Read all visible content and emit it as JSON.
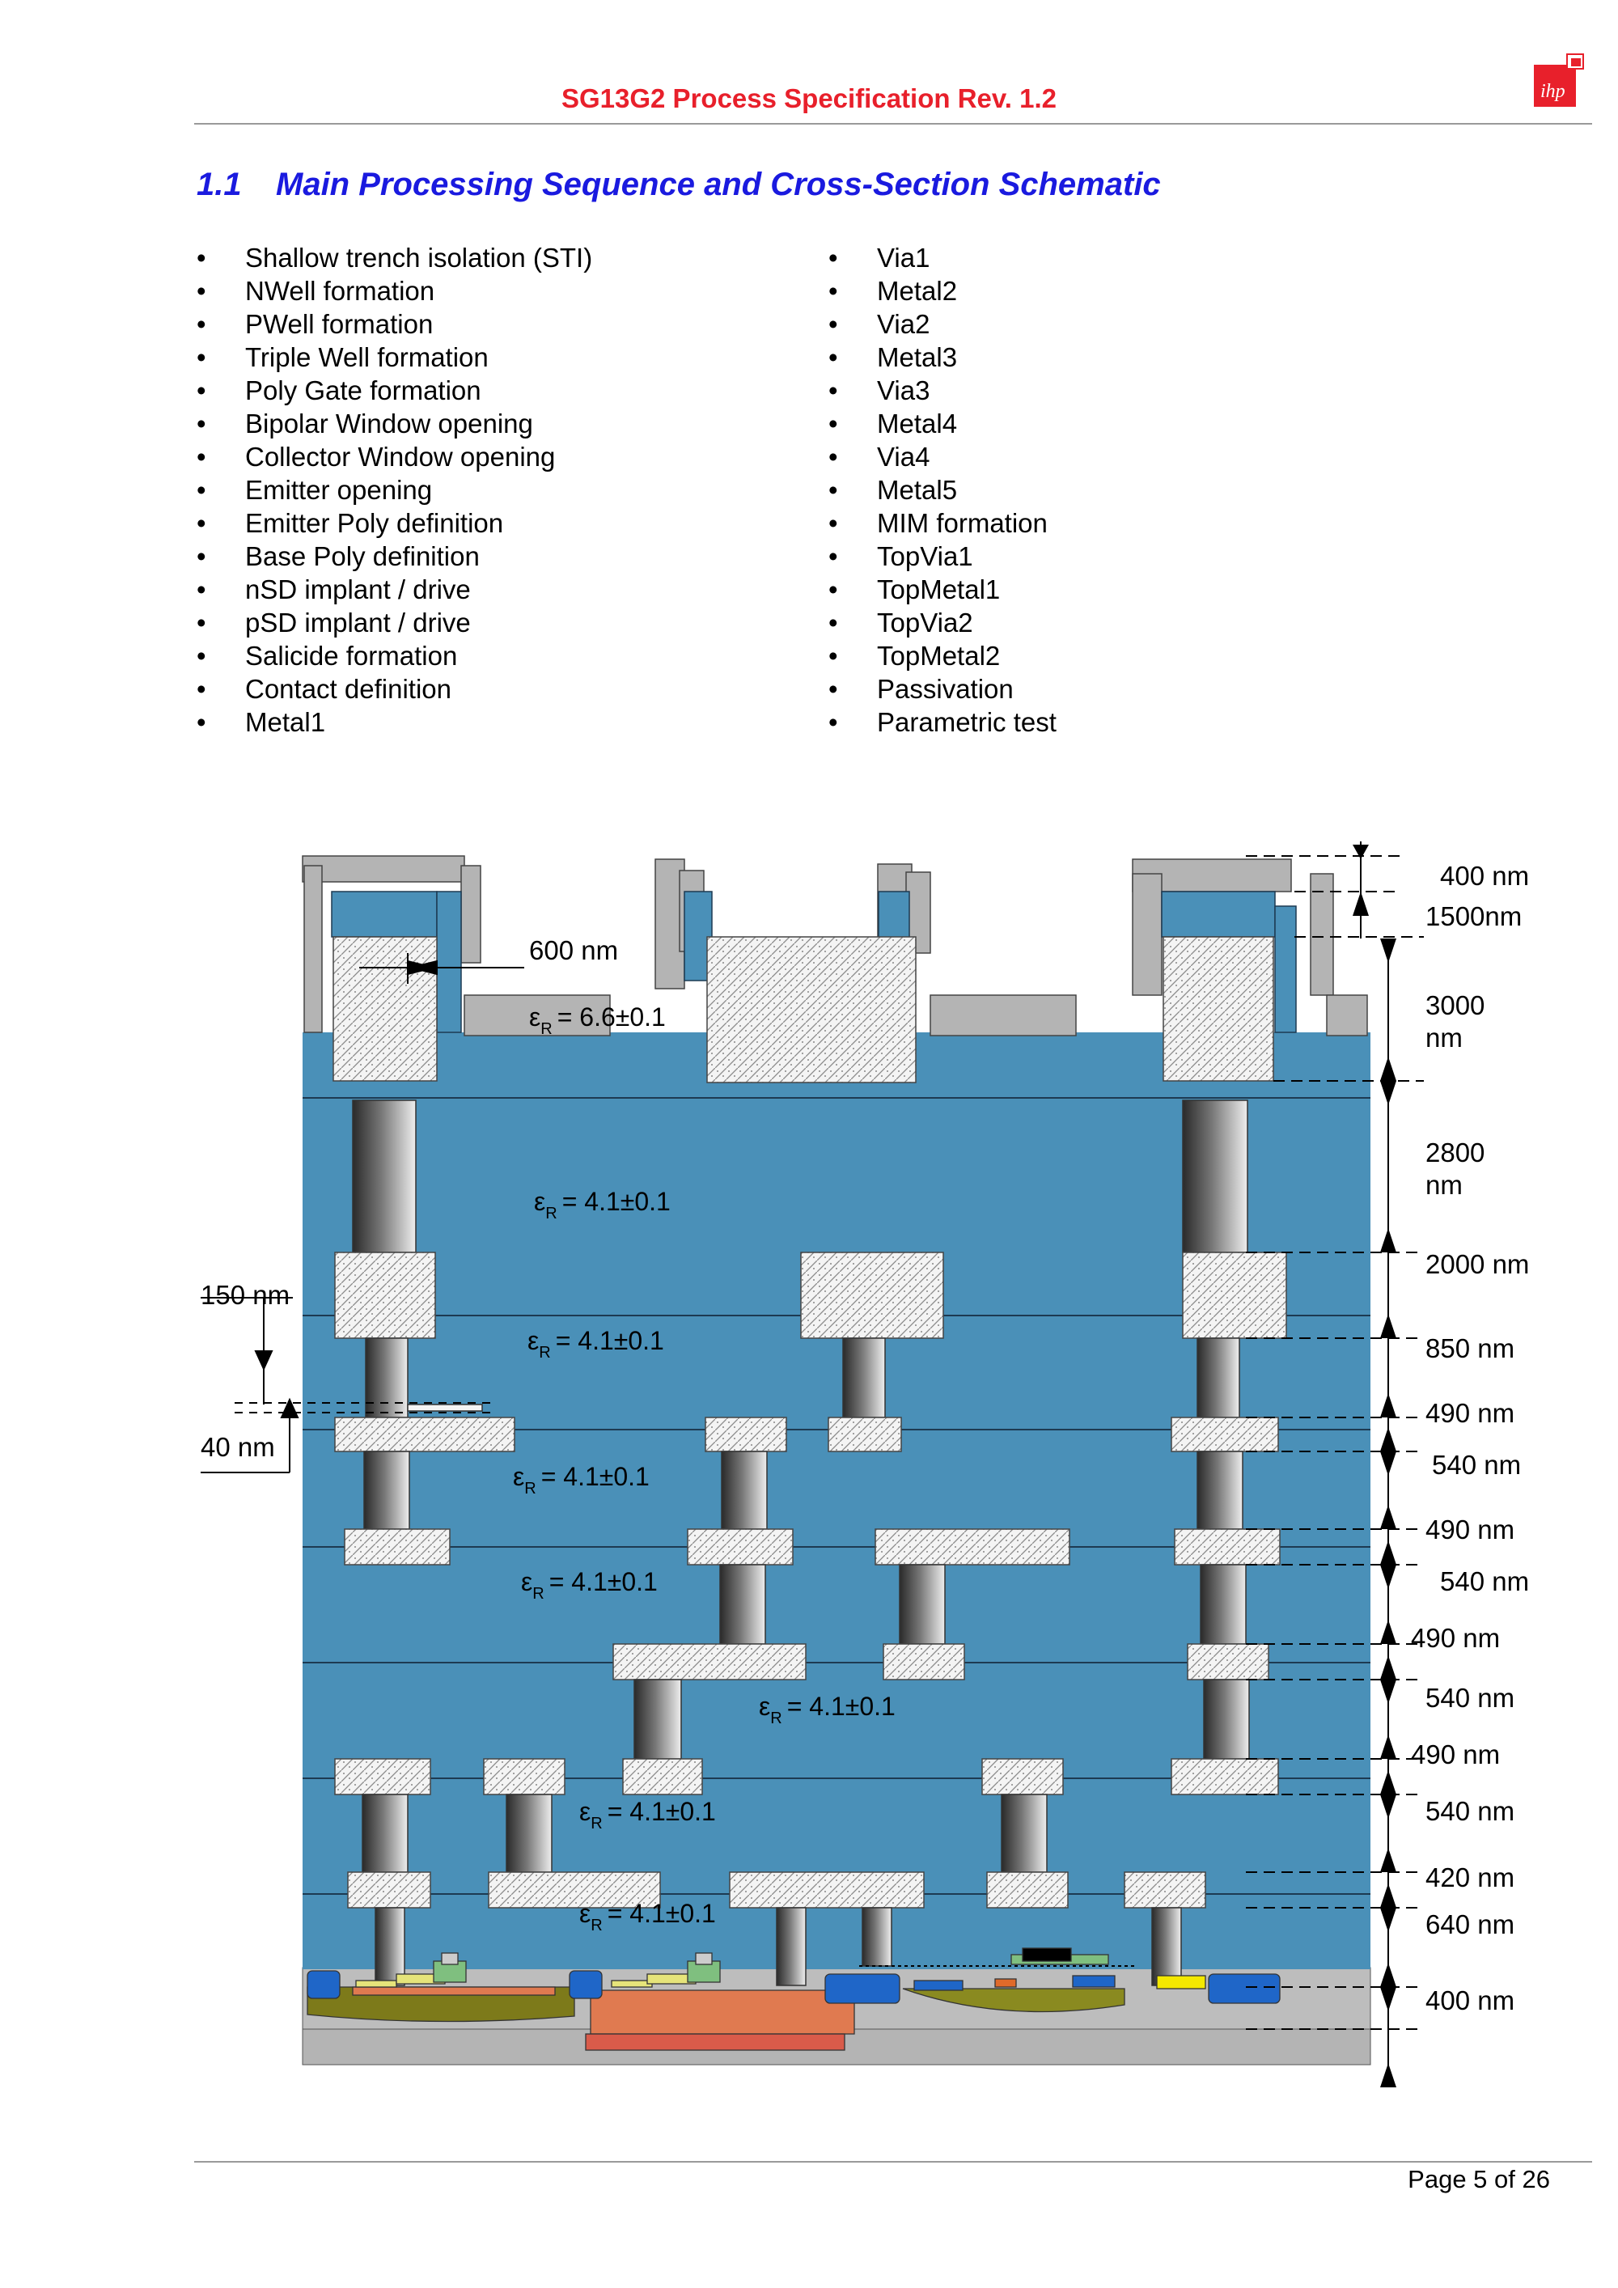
{
  "header": {
    "title": "SG13G2 Process Specification Rev. 1.2",
    "logo_text": "ihp"
  },
  "section": {
    "number": "1.1",
    "title": "Main Processing Sequence and Cross-Section Schematic"
  },
  "steps_left": [
    "Shallow trench isolation (STI)",
    "NWell formation",
    "PWell formation",
    "Triple Well formation",
    "Poly Gate formation",
    "Bipolar Window opening",
    "Collector Window opening",
    "Emitter opening",
    "Emitter Poly definition",
    "Base Poly definition",
    "nSD implant / drive",
    "pSD implant / drive",
    "Salicide formation",
    "Contact definition",
    "Metal1"
  ],
  "steps_right": [
    "Via1",
    "Metal2",
    "Via2",
    "Metal3",
    "Via3",
    "Metal4",
    "Via4",
    "Metal5",
    "MIM formation",
    "TopVia1",
    "TopMetal1",
    "TopVia2",
    "TopMetal2",
    "Passivation",
    "Parametric test"
  ],
  "cross_section": {
    "colors": {
      "dielectric": "#4a90b8",
      "passivation": "#b4b4b4",
      "metal_fill": "#f2f2f2",
      "substrate": "#b4b4b4"
    },
    "dimensions": {
      "passivation_top": "400 nm",
      "passivation": "1500nm",
      "topmetal2_line1": "3000",
      "topmetal2_line2": "nm",
      "topvia2_line1": "2800",
      "topvia2_line2": "nm",
      "topmetal1": "2000 nm",
      "topvia1": "850 nm",
      "metal5": "490 nm",
      "via4": "540 nm",
      "metal4": "490 nm",
      "via3": "540 nm",
      "metal3": "490 nm",
      "via2": "540 nm",
      "metal2": "490 nm",
      "via1": "540 nm",
      "metal1": "420 nm",
      "contact": "640 nm",
      "device": "400 nm",
      "topmetal2_overlap": "600 nm",
      "mim_top": "150 nm",
      "mim_dielectric": "40 nm"
    },
    "permittivity": {
      "passivation": "= 6.6±0.1",
      "topvia2": "= 4.1±0.1",
      "topvia1": "= 4.1±0.1",
      "via4": "= 4.1±0.1",
      "via3": "= 4.1±0.1",
      "via2": "= 4.1±0.1",
      "via1": "= 4.1±0.1",
      "contact": "= 4.1±0.1"
    },
    "eps_symbol": "ε",
    "eps_subscript": "R"
  },
  "footer": {
    "page": "Page 5 of 26"
  }
}
